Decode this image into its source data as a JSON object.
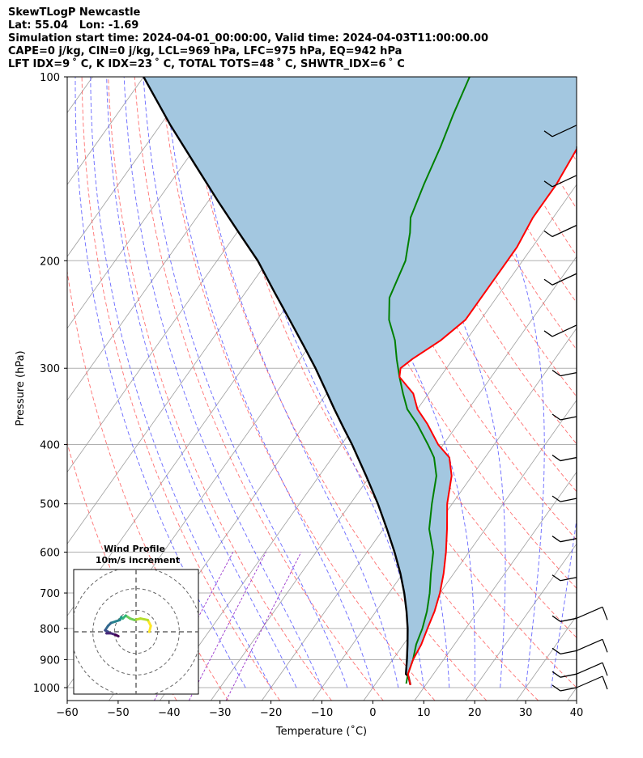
{
  "header": {
    "title": "SkewTLogP Newcastle",
    "location": "Lat: 55.04   Lon: -1.69",
    "times": "Simulation start time: 2024-04-01_00:00:00, Valid time: 2024-04-03T11:00:00.00",
    "cape_line": "CAPE=0 j/kg, CIN=0 j/kg, LCL=969 hPa, LFC=975 hPa, EQ=942 hPa",
    "index_line": "LFT IDX=9 ˚ C, K IDX=23 ˚ C, TOTAL TOTS=48 ˚ C, SHWTR_IDX=6 ˚ C"
  },
  "chart_data": {
    "type": "line",
    "subtype": "skew-T log-P",
    "xlabel": "Temperature (˚C)",
    "ylabel": "Pressure (hPa)",
    "xlim": [
      -60,
      40
    ],
    "ylim": [
      1050,
      100
    ],
    "y_scale": "log",
    "grid": true,
    "x_ticks": [
      "−60",
      "−50",
      "−40",
      "−30",
      "−20",
      "−10",
      "0",
      "10",
      "20",
      "30",
      "40"
    ],
    "y_ticks": [
      "100",
      "200",
      "300",
      "400",
      "500",
      "600",
      "700",
      "800",
      "900",
      "1000"
    ],
    "series": [
      {
        "key": "temperature",
        "color": "#ff0000",
        "points": [
          [
            7,
            990
          ],
          [
            5,
            950
          ],
          [
            4,
            900
          ],
          [
            3.5,
            850
          ],
          [
            2.5,
            800
          ],
          [
            1.5,
            750
          ],
          [
            0,
            700
          ],
          [
            -2,
            650
          ],
          [
            -4.5,
            600
          ],
          [
            -7.5,
            550
          ],
          [
            -11,
            500
          ],
          [
            -14,
            450
          ],
          [
            -17,
            420
          ],
          [
            -21,
            400
          ],
          [
            -26,
            370
          ],
          [
            -30,
            350
          ],
          [
            -33,
            330
          ],
          [
            -38,
            310
          ],
          [
            -39,
            300
          ],
          [
            -38,
            290
          ],
          [
            -35,
            270
          ],
          [
            -33,
            250
          ],
          [
            -33,
            230
          ],
          [
            -33,
            210
          ],
          [
            -33,
            190
          ],
          [
            -34,
            170
          ],
          [
            -34,
            150
          ],
          [
            -35,
            130
          ],
          [
            -37,
            115
          ],
          [
            -40,
            100
          ]
        ]
      },
      {
        "key": "dewpoint",
        "color": "#008000",
        "points": [
          [
            6,
            985
          ],
          [
            5,
            950
          ],
          [
            4,
            900
          ],
          [
            2.5,
            850
          ],
          [
            1.5,
            800
          ],
          [
            0,
            750
          ],
          [
            -2,
            700
          ],
          [
            -4.5,
            650
          ],
          [
            -7,
            600
          ],
          [
            -11,
            550
          ],
          [
            -14,
            500
          ],
          [
            -17,
            450
          ],
          [
            -20,
            420
          ],
          [
            -23,
            400
          ],
          [
            -28,
            370
          ],
          [
            -32,
            350
          ],
          [
            -35,
            330
          ],
          [
            -38,
            310
          ],
          [
            -41,
            290
          ],
          [
            -44,
            270
          ],
          [
            -48,
            250
          ],
          [
            -51,
            230
          ],
          [
            -53,
            200
          ],
          [
            -56,
            180
          ],
          [
            -58,
            170
          ],
          [
            -60,
            150
          ],
          [
            -62,
            130
          ],
          [
            -64,
            115
          ],
          [
            -66,
            100
          ]
        ]
      },
      {
        "key": "parcel",
        "color": "#000000",
        "points": [
          [
            7,
            990
          ],
          [
            5.5,
            960
          ],
          [
            4.6,
            950
          ],
          [
            2.8,
            900
          ],
          [
            0.8,
            850
          ],
          [
            -1.4,
            800
          ],
          [
            -4.0,
            750
          ],
          [
            -7.0,
            700
          ],
          [
            -10.5,
            650
          ],
          [
            -14.6,
            600
          ],
          [
            -19.3,
            550
          ],
          [
            -24.6,
            500
          ],
          [
            -30.8,
            450
          ],
          [
            -37.9,
            400
          ],
          [
            -42.0,
            375
          ],
          [
            -46.3,
            350
          ],
          [
            -50.8,
            325
          ],
          [
            -55.7,
            300
          ],
          [
            -61.3,
            275
          ],
          [
            -67.5,
            250
          ],
          [
            -74.4,
            225
          ],
          [
            -82.0,
            200
          ],
          [
            -89.6,
            180
          ],
          [
            -98.0,
            160
          ],
          [
            -107.3,
            140
          ],
          [
            -118.0,
            120
          ],
          [
            -130.0,
            100
          ]
        ]
      }
    ],
    "inset": {
      "title_line1": "Wind Profile",
      "title_line2": "10m/s increment",
      "rings_ms": [
        10,
        20,
        30
      ],
      "hodograph": [
        [
          4.5,
          0
        ],
        [
          5,
          2
        ],
        [
          4,
          4
        ],
        [
          1.5,
          4.5
        ],
        [
          -0.5,
          4
        ],
        [
          -2,
          4.5
        ],
        [
          -3.5,
          5.5
        ],
        [
          -4.5,
          4.5
        ],
        [
          -5,
          5
        ],
        [
          -5.5,
          4
        ],
        [
          -7,
          3.5
        ],
        [
          -8.5,
          3
        ],
        [
          -9.5,
          2
        ],
        [
          -10.5,
          0.5
        ],
        [
          -9.5,
          0
        ],
        [
          -10,
          -0.5
        ],
        [
          -8.5,
          -0.5
        ],
        [
          -7,
          -1
        ],
        [
          -6,
          -1.5
        ]
      ]
    },
    "wind_barbs_pressure": [
      120,
      145,
      175,
      210,
      255,
      305,
      360,
      420,
      490,
      570,
      660,
      770,
      870,
      950,
      1000
    ]
  },
  "colors": {
    "isotherm": "#999999",
    "dry_adiabat": "#ff0000",
    "moist_adiabat": "#0000ff",
    "mixing_ratio": "#9933cc",
    "cape_fill": "#a3c7e0"
  }
}
